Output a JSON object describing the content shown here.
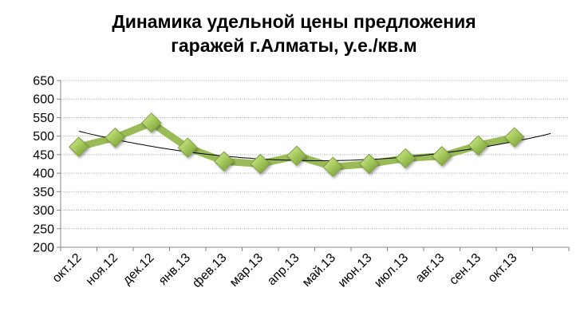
{
  "chart_data": {
    "type": "line",
    "title_lines": [
      "Динамика удельной цены предложения",
      "гаражей г.Алматы, у.е./кв.м"
    ],
    "categories": [
      "окт.12",
      "ноя.12",
      "дек.12",
      "янв.13",
      "фев.13",
      "мар.13",
      "апр.13",
      "май.13",
      "июн.13",
      "июл.13",
      "авг.13",
      "сен.13",
      "окт.13"
    ],
    "series": [
      {
        "values": [
          471,
          496,
          536,
          469,
          432,
          425,
          447,
          417,
          425,
          440,
          446,
          475,
          497
        ],
        "color": "#9BBB59",
        "marker": "diamond"
      }
    ],
    "trendline": {
      "type": "polynomial",
      "color": "#000000"
    },
    "ylim": [
      200,
      650
    ],
    "yticks": [
      200,
      250,
      300,
      350,
      400,
      450,
      500,
      550,
      600,
      650
    ],
    "ytick_labels": [
      "200",
      "250",
      "300",
      "350",
      "400",
      "450",
      "500",
      "550",
      "600",
      "650"
    ],
    "grid": true
  }
}
